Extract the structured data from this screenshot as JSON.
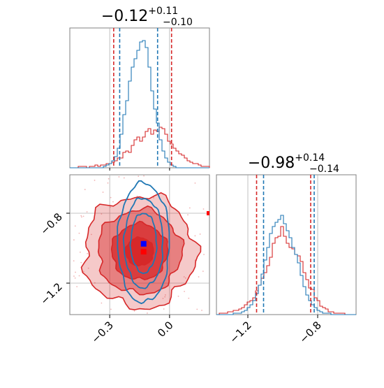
{
  "chart_data": {
    "type": "corner",
    "params": [
      {
        "title_value": "−0.12",
        "title_plus": "+0.11",
        "title_minus": "−0.10",
        "range": [
          -0.5,
          0.2
        ],
        "ticks": [
          -0.3,
          0.0
        ],
        "tick_labels": [
          "−0.3",
          "0.0"
        ],
        "true_value": -0.12,
        "quantile_lines": {
          "red": [
            -0.28,
            0.01
          ],
          "blue": [
            -0.25,
            -0.06
          ]
        }
      },
      {
        "title_value": "−0.98",
        "title_plus": "+0.14",
        "title_minus": "−0.14",
        "range": [
          -1.38,
          -0.58
        ],
        "ticks": [
          -1.2,
          -0.8
        ],
        "tick_labels": [
          "−1.2",
          "−0.8"
        ],
        "true_value": -0.98,
        "quantile_lines": {
          "red": [
            -1.15,
            -0.84
          ],
          "blue": [
            -1.11,
            -0.82
          ]
        }
      }
    ],
    "series": [
      {
        "color": "#d62728",
        "hist1": [
          0,
          0,
          0,
          1,
          1,
          1,
          0,
          1,
          1,
          2,
          1,
          2,
          2,
          3,
          3,
          4,
          5,
          7,
          7,
          11,
          12,
          11,
          16,
          20,
          22,
          19,
          22,
          26,
          28,
          24,
          27,
          26,
          29,
          28,
          24,
          19,
          17,
          14,
          12,
          10,
          9,
          7,
          5,
          4,
          3,
          3,
          2,
          1,
          1,
          1
        ],
        "hist2": [
          0,
          1,
          1,
          1,
          2,
          2,
          3,
          3,
          4,
          5,
          7,
          9,
          10,
          12,
          17,
          21,
          26,
          30,
          35,
          41,
          51,
          55,
          56,
          63,
          56,
          51,
          48,
          47,
          43,
          42,
          38,
          30,
          25,
          19,
          18,
          12,
          10,
          6,
          5,
          4,
          2,
          2,
          1,
          1,
          1,
          1,
          0,
          0,
          0,
          0
        ],
        "joint_mean": [
          -0.15,
          -1.02
        ],
        "joint_sd": [
          0.14,
          0.16
        ]
      },
      {
        "color": "#1f77b4",
        "hist1": [
          0,
          0,
          0,
          0,
          0,
          0,
          0,
          0,
          0,
          0,
          0,
          0,
          1,
          2,
          3,
          5,
          8,
          14,
          24,
          38,
          48,
          62,
          72,
          78,
          84,
          90,
          91,
          86,
          72,
          55,
          42,
          32,
          20,
          12,
          7,
          4,
          2,
          1,
          0,
          0,
          0,
          0,
          0,
          0,
          0,
          0,
          0,
          0,
          0,
          0
        ],
        "hist2": [
          0,
          0,
          0,
          0,
          0,
          0,
          1,
          1,
          1,
          2,
          3,
          5,
          7,
          10,
          15,
          21,
          29,
          39,
          48,
          58,
          63,
          66,
          68,
          71,
          65,
          60,
          55,
          48,
          43,
          37,
          28,
          20,
          14,
          10,
          7,
          5,
          3,
          2,
          1,
          1,
          1,
          0,
          0,
          0,
          0,
          0,
          0,
          0,
          0,
          0
        ],
        "joint_mean": [
          -0.13,
          -0.97
        ],
        "joint_sd": [
          0.065,
          0.18
        ]
      }
    ],
    "markers": [
      {
        "color": "#0000ff",
        "x": -0.13,
        "y": -0.975
      },
      {
        "color": "#ff0000",
        "x": -0.13,
        "y": -1.02
      }
    ],
    "grid": true
  }
}
